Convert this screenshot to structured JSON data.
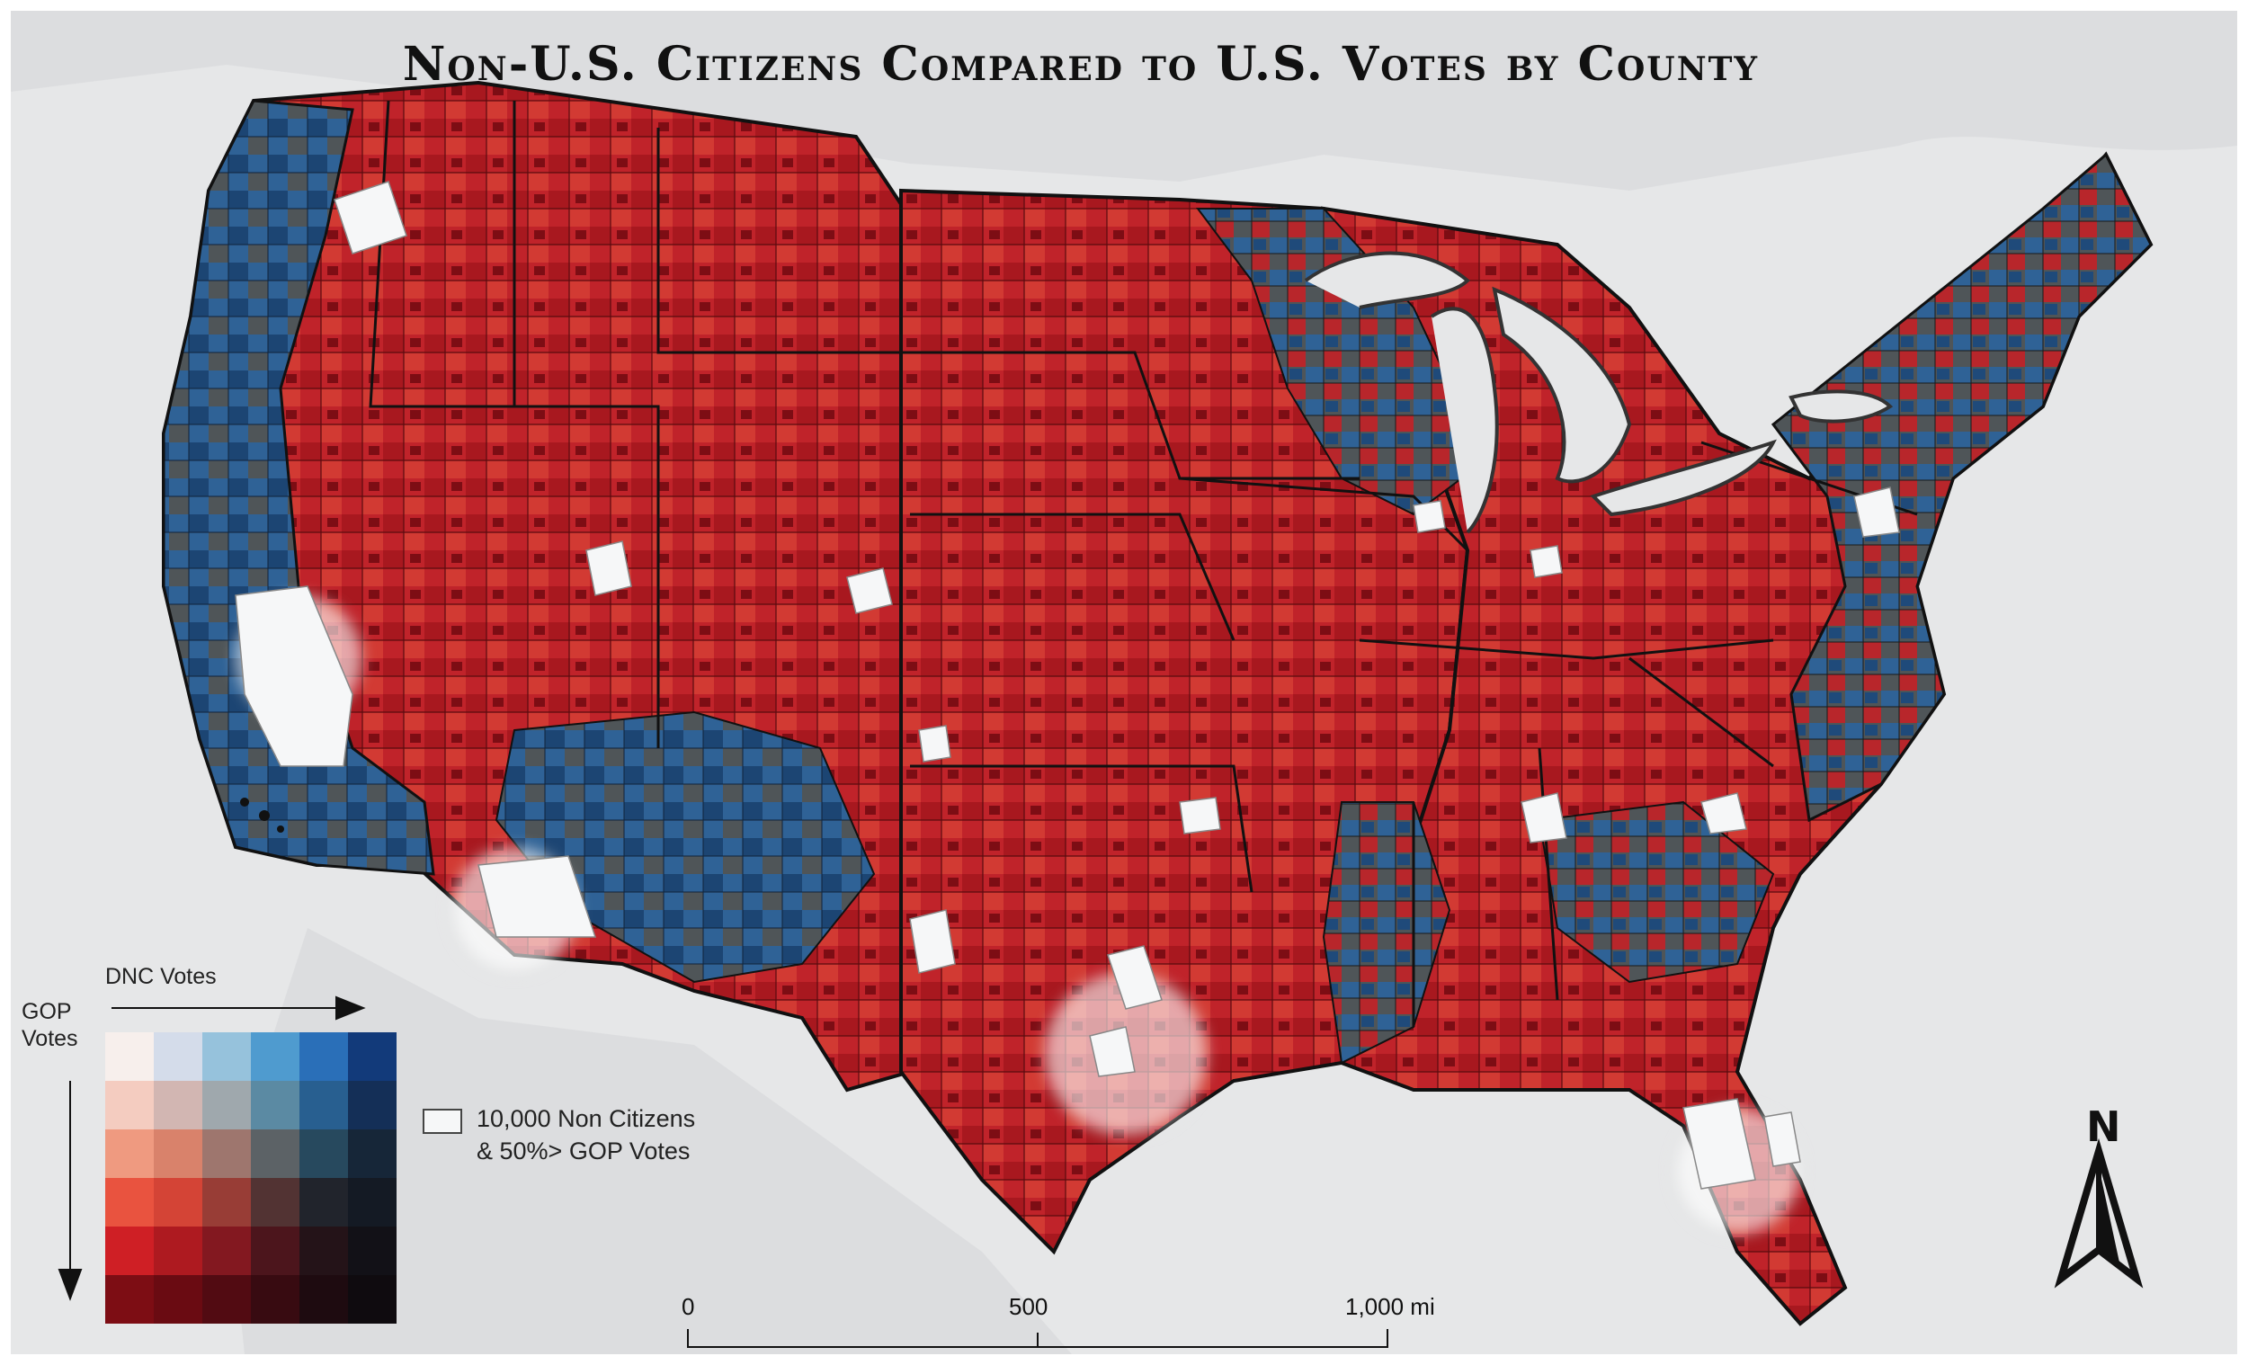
{
  "title": "Non-U.S. Citizens Compared to U.S. Votes by County",
  "legend": {
    "x_axis_label": "DNC Votes",
    "y_axis_label": "GOP\nVotes",
    "bivariate_colors": [
      [
        "#f7efec",
        "#d4dcea",
        "#96c2dc",
        "#4f9bcf",
        "#2a6fb8",
        "#123a7a"
      ],
      [
        "#f4ccc0",
        "#d2b6b2",
        "#9fa8ad",
        "#5b8aa3",
        "#285f90",
        "#142f57"
      ],
      [
        "#ef9a80",
        "#d9826b",
        "#9e766e",
        "#5c6266",
        "#27495e",
        "#162638"
      ],
      [
        "#e9533f",
        "#d44436",
        "#983d36",
        "#523333",
        "#21242c",
        "#141a24"
      ],
      [
        "#cf1f25",
        "#ae1a20",
        "#831820",
        "#4c151c",
        "#241318",
        "#121117"
      ],
      [
        "#7d0d14",
        "#6a0b12",
        "#520b12",
        "#380b11",
        "#1e0b10",
        "#0f0b0f"
      ]
    ],
    "highlight_key_text": "10,000 Non Citizens\n& 50%> GOP Votes",
    "highlight_color": "#f6f7f8"
  },
  "scale_bar": {
    "labels": [
      "0",
      "500",
      "1,000 mi"
    ]
  },
  "north_arrow": {
    "label": "N"
  },
  "colors": {
    "gop_red": "#c0232a",
    "dark_red": "#7d0d14",
    "dnc_blue": "#2f6296",
    "mixed_gray": "#4f5558",
    "water_land": "#e6e7e8",
    "state_border": "#1a1a1a"
  }
}
